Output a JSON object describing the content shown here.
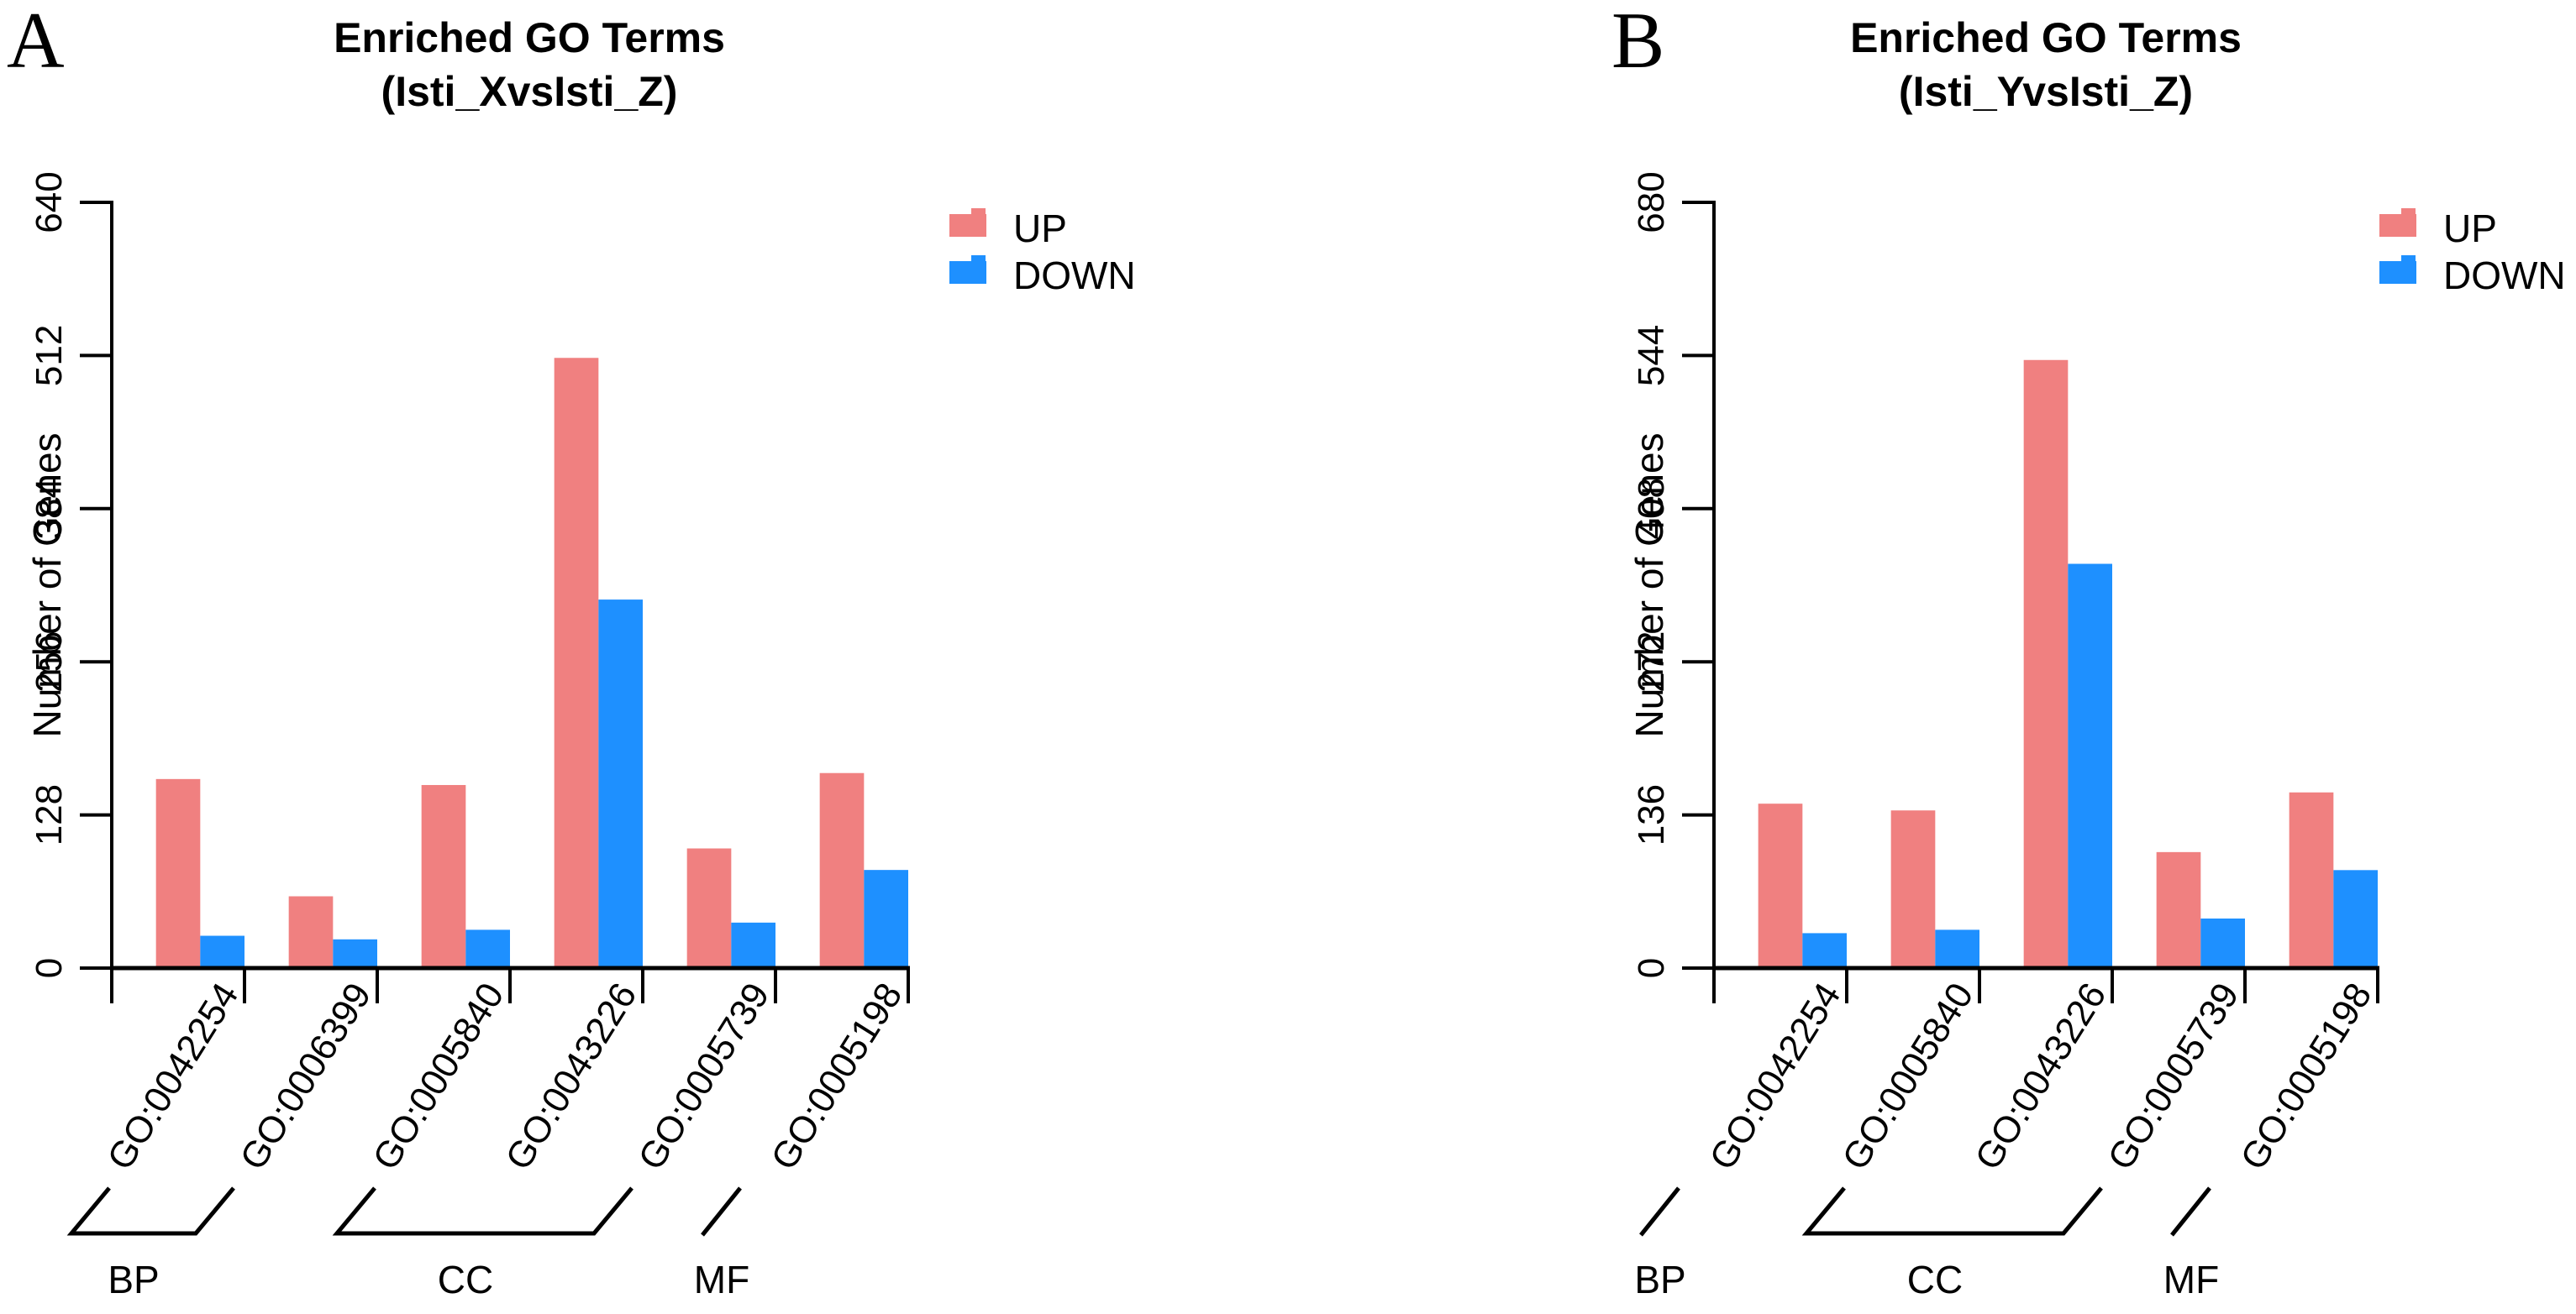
{
  "figure": {
    "background": "#FFFFFF",
    "colors": {
      "up": "#F08080",
      "down": "#1E90FF",
      "axis": "#000000"
    },
    "legend": {
      "up_label": "UP",
      "down_label": "DOWN"
    }
  },
  "chart_data": [
    {
      "type": "bar",
      "panel_letter": "A",
      "title": "Enriched GO Terms",
      "subtitle": "(Isti_XvsIsti_Z)",
      "ylabel": "Number of Genes",
      "xlabel": "",
      "ylim": [
        0,
        640
      ],
      "y_ticks": [
        0,
        128,
        256,
        384,
        512,
        640
      ],
      "categories": [
        "GO:0042254",
        "GO:0006399",
        "GO:0005840",
        "GO:0043226",
        "GO:0005739",
        "GO:0005198"
      ],
      "series": [
        {
          "name": "UP",
          "color": "#F08080",
          "values": [
            158,
            60,
            153,
            510,
            100,
            163
          ]
        },
        {
          "name": "DOWN",
          "color": "#1E90FF",
          "values": [
            27,
            24,
            32,
            308,
            38,
            82
          ]
        }
      ],
      "group_labels": [
        {
          "label": "BP",
          "start": 0,
          "end": 1,
          "bracket": "full"
        },
        {
          "label": "CC",
          "start": 2,
          "end": 4,
          "bracket": "full"
        },
        {
          "label": "MF",
          "start": 5,
          "end": 5,
          "bracket": "slash"
        }
      ],
      "legend_position": "top-right",
      "grid": false
    },
    {
      "type": "bar",
      "panel_letter": "B",
      "title": "Enriched GO Terms",
      "subtitle": "(Isti_YvsIsti_Z)",
      "ylabel": "Number of Genes",
      "xlabel": "",
      "ylim": [
        0,
        680
      ],
      "y_ticks": [
        0,
        136,
        272,
        408,
        544,
        680
      ],
      "categories": [
        "GO:0042254",
        "GO:0005840",
        "GO:0043226",
        "GO:0005739",
        "GO:0005198"
      ],
      "series": [
        {
          "name": "UP",
          "color": "#F08080",
          "values": [
            146,
            140,
            540,
            103,
            156
          ]
        },
        {
          "name": "DOWN",
          "color": "#1E90FF",
          "values": [
            31,
            34,
            359,
            44,
            87
          ]
        }
      ],
      "group_labels": [
        {
          "label": "BP",
          "start": 0,
          "end": 0,
          "bracket": "slash"
        },
        {
          "label": "CC",
          "start": 1,
          "end": 3,
          "bracket": "full"
        },
        {
          "label": "MF",
          "start": 4,
          "end": 4,
          "bracket": "slash"
        }
      ],
      "legend_position": "top-right",
      "grid": false
    }
  ]
}
